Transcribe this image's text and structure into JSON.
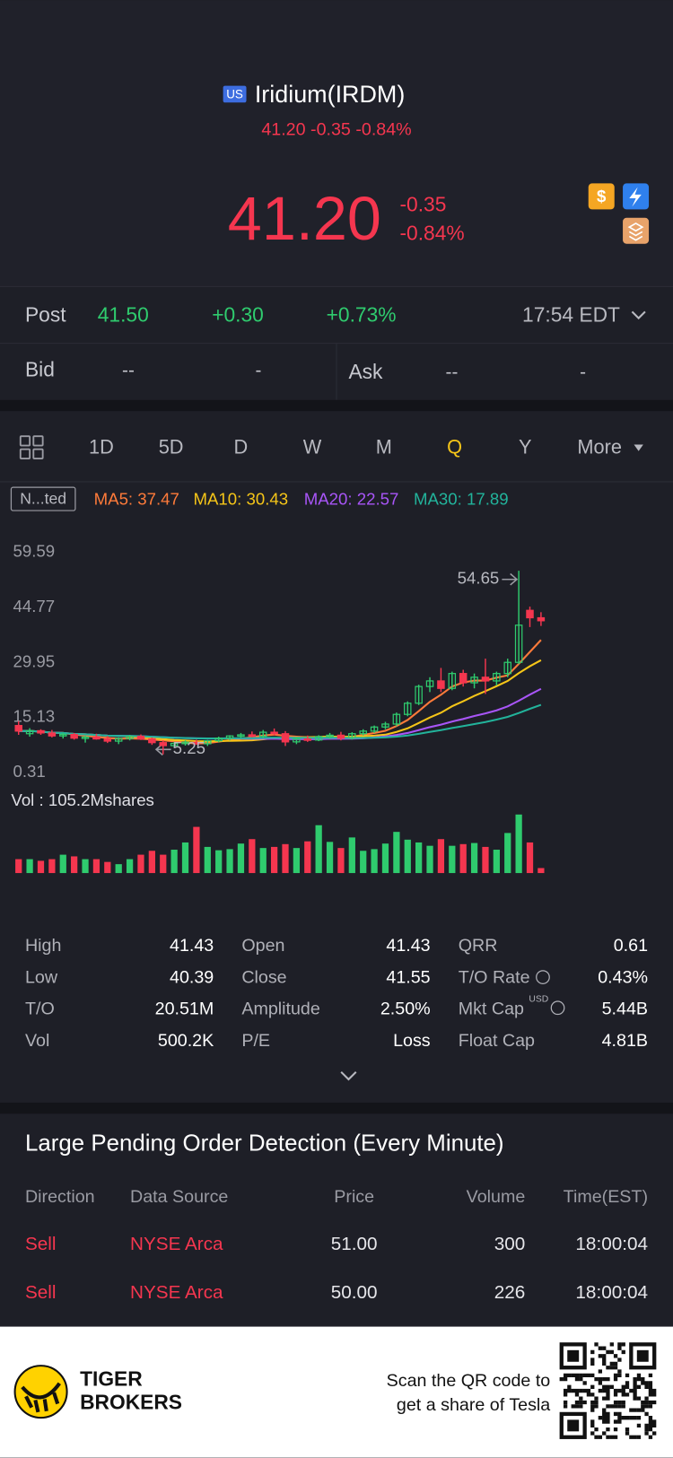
{
  "header": {
    "badge": "US",
    "name": "Iridium(IRDM)",
    "quote": "41.20 -0.35 -0.84%"
  },
  "price": {
    "last": "41.20",
    "change": "-0.35",
    "percent": "-0.84%"
  },
  "post": {
    "label": "Post",
    "price": "41.50",
    "change": "+0.30",
    "percent": "+0.73%",
    "time": "17:54 EDT"
  },
  "book": {
    "bid_label": "Bid",
    "bid": "--",
    "bid_size": "-",
    "ask_label": "Ask",
    "ask": "--",
    "ask_size": "-"
  },
  "tabs": {
    "items": [
      "1D",
      "5D",
      "D",
      "W",
      "M",
      "Q",
      "Y",
      "More"
    ],
    "active": 5
  },
  "indicators": {
    "badge": "N...ted",
    "items": [
      {
        "label": "MA5: 37.47",
        "color": "#ff7b3a",
        "period": 5
      },
      {
        "label": "MA10: 30.43",
        "color": "#f5c518",
        "period": 10
      },
      {
        "label": "MA20: 22.57",
        "color": "#a855f7",
        "period": 20
      },
      {
        "label": "MA30: 17.89",
        "color": "#22b39b",
        "period": 30
      }
    ]
  },
  "chart_data": {
    "type": "candlestick",
    "candles": [
      [
        13,
        14.2,
        10.5,
        11.5
      ],
      [
        10.8,
        12.3,
        10,
        11.6
      ],
      [
        11.6,
        12,
        10.5,
        11
      ],
      [
        11,
        11.8,
        9.8,
        10.2
      ],
      [
        10.2,
        11,
        9.5,
        10.6
      ],
      [
        10.6,
        11,
        9.2,
        9.6
      ],
      [
        9.6,
        10.3,
        8.4,
        9.9
      ],
      [
        9.9,
        10.8,
        9.2,
        9.4
      ],
      [
        9.4,
        10.2,
        8.3,
        8.8
      ],
      [
        8.8,
        9.8,
        8,
        9.5
      ],
      [
        9.5,
        10.5,
        9,
        10.1
      ],
      [
        10.1,
        10.6,
        9.1,
        9.4
      ],
      [
        9.4,
        9.8,
        7.8,
        8.4
      ],
      [
        8.4,
        9,
        5.25,
        7.6
      ],
      [
        7.6,
        8.6,
        7,
        8.2
      ],
      [
        8.2,
        9,
        7.6,
        8.5
      ],
      [
        8.5,
        9.2,
        7.8,
        8.1
      ],
      [
        8.1,
        9.1,
        7.5,
        8.9
      ],
      [
        8.9,
        10,
        8.5,
        9.6
      ],
      [
        9.6,
        10.4,
        9,
        10.2
      ],
      [
        10.2,
        11,
        9.6,
        10.5
      ],
      [
        10.5,
        11.4,
        9.8,
        10.1
      ],
      [
        10.1,
        11.8,
        9.5,
        11.2
      ],
      [
        11.2,
        12.2,
        10.4,
        10.8
      ],
      [
        10.8,
        11.5,
        7.5,
        8.6
      ],
      [
        8.6,
        9.8,
        8,
        9.4
      ],
      [
        9.4,
        10.3,
        8.6,
        9.1
      ],
      [
        9.1,
        10.4,
        8.8,
        10
      ],
      [
        10,
        11,
        9.4,
        10.4
      ],
      [
        10.4,
        11.3,
        9,
        9.6
      ],
      [
        9.6,
        11.2,
        9.2,
        10.8
      ],
      [
        10.8,
        12,
        10.3,
        11.5
      ],
      [
        11.5,
        13,
        11,
        12.6
      ],
      [
        12.6,
        14,
        12,
        13.4
      ],
      [
        13.4,
        16.5,
        12.8,
        16
      ],
      [
        16,
        19.5,
        15.5,
        19
      ],
      [
        19,
        24,
        18.5,
        23.5
      ],
      [
        23.5,
        26,
        22,
        25
      ],
      [
        25,
        28.5,
        22,
        23
      ],
      [
        23,
        27.5,
        22.5,
        27
      ],
      [
        27,
        28,
        23.5,
        24.5
      ],
      [
        24.5,
        27,
        23,
        26
      ],
      [
        26,
        31,
        21.5,
        25
      ],
      [
        25,
        27.5,
        23.8,
        27
      ],
      [
        27,
        31,
        26,
        30
      ],
      [
        30,
        54.65,
        29.5,
        40
      ],
      [
        44,
        45,
        39.5,
        42
      ],
      [
        42,
        43.5,
        39.8,
        41.2
      ]
    ],
    "ylim": [
      0.31,
      59.59
    ],
    "yticks": [
      59.59,
      44.77,
      29.95,
      15.13,
      0.31
    ],
    "up_color": "#2fcb6e",
    "down_color": "#f5364f",
    "volume_label": "Vol  : 105.2Mshares",
    "volumes": [
      25,
      25,
      22,
      25,
      33,
      30,
      25,
      25,
      20,
      16,
      25,
      33,
      40,
      33,
      42,
      55,
      83,
      47,
      41,
      43,
      53,
      61,
      45,
      47,
      52,
      45,
      57,
      86,
      56,
      45,
      64,
      40,
      43,
      53,
      74,
      60,
      55,
      49,
      61,
      49,
      52,
      54,
      47,
      42,
      72,
      105.2,
      55,
      9
    ],
    "vol_ylim": [
      0,
      105.2
    ]
  },
  "stats": [
    [
      {
        "label": "High",
        "value": "41.43"
      },
      {
        "label": "Open",
        "value": "41.43"
      },
      {
        "label": "QRR",
        "value": "0.61"
      }
    ],
    [
      {
        "label": "Low",
        "value": "40.39"
      },
      {
        "label": "Close",
        "value": "41.55"
      },
      {
        "label": "T/O Rate",
        "value": "0.43%"
      }
    ],
    [
      {
        "label": "T/O",
        "value": "20.51M"
      },
      {
        "label": "Amplitude",
        "value": "2.50%"
      },
      {
        "label": "Mkt Cap",
        "value": "5.44B",
        "unit": "USD"
      }
    ],
    [
      {
        "label": "Vol",
        "value": "500.2K"
      },
      {
        "label": "P/E",
        "value": "Loss"
      },
      {
        "label": "Float Cap",
        "value": "4.81B"
      }
    ]
  ],
  "orders": {
    "title": "Large Pending Order Detection (Every Minute)",
    "columns": [
      "Direction",
      "Data Source",
      "Price",
      "Volume",
      "Time(EST)"
    ],
    "rows": [
      [
        "Sell",
        "NYSE Arca",
        "51.00",
        "300",
        "18:00:04"
      ],
      [
        "Sell",
        "NYSE Arca",
        "50.00",
        "226",
        "18:00:04"
      ]
    ]
  },
  "footer": {
    "brand": [
      "TIGER",
      "BROKERS"
    ],
    "promo": [
      "Scan the QR code to",
      "get a share of Tesla"
    ]
  }
}
